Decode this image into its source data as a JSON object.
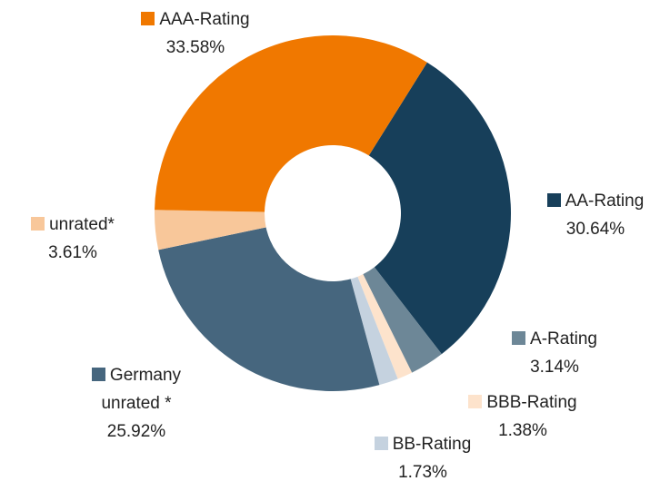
{
  "chart_data": {
    "type": "donut",
    "categories": [
      "AA-Rating",
      "A-Rating",
      "BBB-Rating",
      "BB-Rating",
      "Germany unrated *",
      "unrated*",
      "AAA-Rating"
    ],
    "values": [
      30.64,
      3.14,
      1.38,
      1.73,
      25.92,
      3.61,
      33.58
    ],
    "value_labels": [
      "30.64%",
      "3.14%",
      "1.38%",
      "1.73%",
      "25.92%",
      "3.61%",
      "33.58%"
    ],
    "colors": [
      "#173f5a",
      "#6d8797",
      "#fde3cc",
      "#c5d2df",
      "#46667e",
      "#f8c79a",
      "#f07800"
    ]
  }
}
